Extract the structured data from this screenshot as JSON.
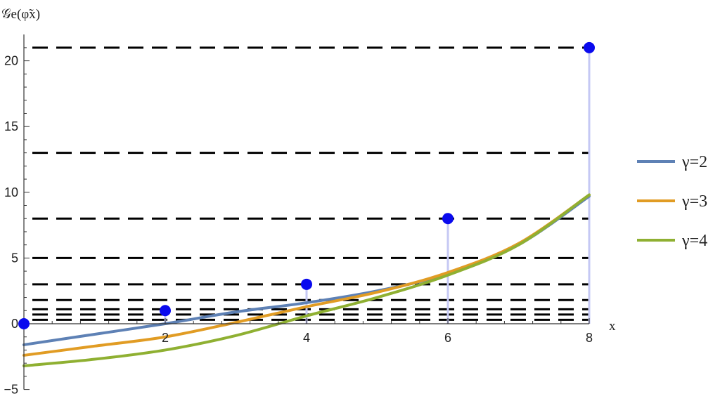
{
  "chart_data": {
    "type": "line",
    "ylabel": "𝒢e(φ̃x)",
    "xlabel": "x",
    "xlim": [
      0,
      8
    ],
    "ylim": [
      -5,
      22
    ],
    "x_ticks": [
      2,
      4,
      6,
      8
    ],
    "y_ticks": [
      -5,
      0,
      5,
      10,
      15,
      20
    ],
    "x_tick_labels": [
      "2",
      "4",
      "6",
      "8"
    ],
    "y_tick_labels": [
      "−5",
      "0",
      "5",
      "10",
      "15",
      "20"
    ],
    "dashed_levels": [
      0.3,
      0.7,
      1.1,
      1.8,
      3,
      5,
      8,
      13,
      21
    ],
    "points": {
      "color": "#0a0aee",
      "stem_color": "#c5c8f4",
      "x": [
        0,
        2,
        4,
        6,
        8
      ],
      "y": [
        0,
        1,
        3,
        8,
        21
      ]
    },
    "series": [
      {
        "name": "γ=2",
        "color": "#5e81b5",
        "x": [
          0,
          1,
          2,
          3,
          4,
          5,
          6,
          7,
          8
        ],
        "y": [
          -1.6,
          -0.8,
          0.0,
          0.9,
          1.6,
          2.5,
          3.8,
          6.0,
          9.7
        ]
      },
      {
        "name": "γ=3",
        "color": "#e19c24",
        "x": [
          0,
          1,
          2,
          3,
          4,
          5,
          6,
          7,
          8
        ],
        "y": [
          -2.4,
          -1.7,
          -1.0,
          0.1,
          1.3,
          2.4,
          3.9,
          6.1,
          9.8
        ]
      },
      {
        "name": "γ=4",
        "color": "#8fb032",
        "x": [
          0,
          1,
          2,
          3,
          4,
          5,
          6,
          7,
          8
        ],
        "y": [
          -3.2,
          -2.7,
          -2.0,
          -0.9,
          0.6,
          2.0,
          3.7,
          6.0,
          9.8
        ]
      }
    ],
    "legend_position": "right",
    "grid": false
  }
}
